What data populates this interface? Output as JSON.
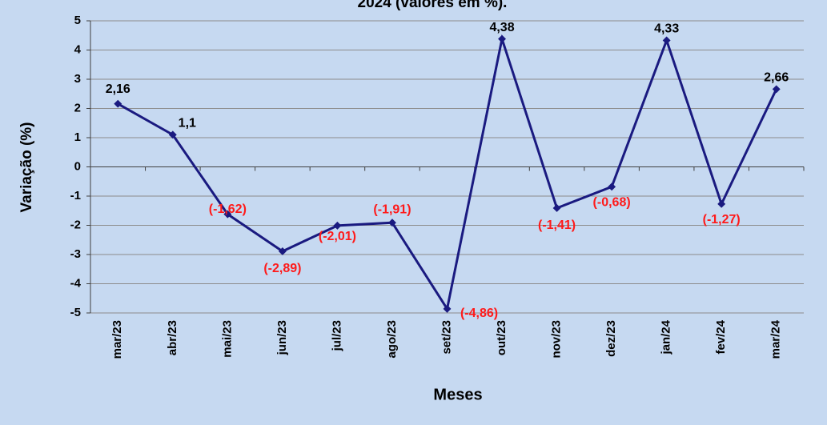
{
  "chart_data": {
    "type": "line",
    "title": "2024 (valores em %).",
    "x_label": "Meses",
    "y_label": "Variação (%)",
    "categories": [
      "mar/23",
      "abr/23",
      "mai/23",
      "jun/23",
      "jul/23",
      "ago/23",
      "set/23",
      "out/23",
      "nov/23",
      "dez/23",
      "jan/24",
      "fev/24",
      "mar/24"
    ],
    "series": [
      {
        "name": "Variação",
        "color": "#1a1a80",
        "values": [
          2.16,
          1.1,
          -1.62,
          -2.89,
          -2.01,
          -1.91,
          -4.86,
          4.38,
          -1.41,
          -0.68,
          4.33,
          -1.27,
          2.66
        ],
        "value_labels": [
          "2,16",
          "1,1",
          "(-1,62)",
          "(-2,89)",
          "(-2,01)",
          "(-1,91)",
          "(-4,86)",
          "4,38",
          "(-1,41)",
          "(-0,68)",
          "4,33",
          "(-1,27)",
          "2,66"
        ]
      }
    ],
    "ylim": [
      -5,
      5
    ],
    "yticks": [
      -5,
      -4,
      -3,
      -2,
      -1,
      0,
      1,
      2,
      3,
      4,
      5
    ],
    "grid": true
  }
}
